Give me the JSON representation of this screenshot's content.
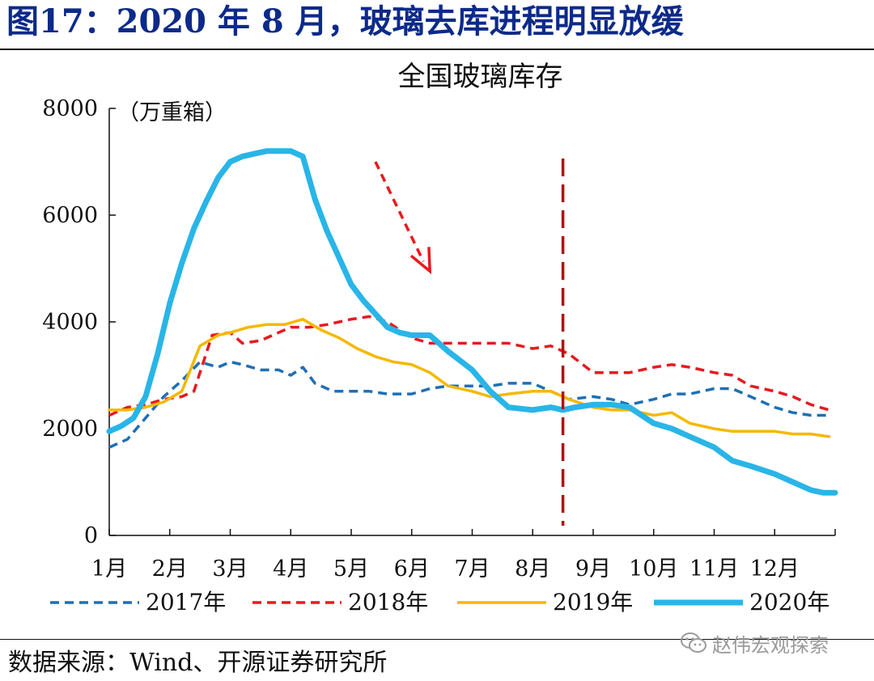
{
  "header": {
    "title": "图17：2020 年 8 月，玻璃去库进程明显放缓"
  },
  "source": {
    "text": "数据来源：Wind、开源证券研究所"
  },
  "watermark": {
    "text": "赵伟宏观探索",
    "icon": "wechat-icon"
  },
  "colors": {
    "s2017": "#1f6fb5",
    "s2018": "#e8191f",
    "s2019": "#f5b800",
    "s2020": "#29b5e8",
    "marker": "#b01010",
    "header": "#0d2a8a"
  },
  "chart_data": {
    "type": "line",
    "title": "全国玻璃库存",
    "ylabel": "（万重箱）",
    "ylim": [
      0,
      8000
    ],
    "yticks": [
      0,
      2000,
      4000,
      6000,
      8000
    ],
    "xlim": [
      1,
      13
    ],
    "categories": [
      "1月",
      "2月",
      "3月",
      "4月",
      "5月",
      "6月",
      "7月",
      "8月",
      "9月",
      "10月",
      "11月",
      "12月"
    ],
    "vline_x": 8.5,
    "arrow": {
      "from": [
        5.4,
        7000
      ],
      "to": [
        6.3,
        4950
      ]
    },
    "legend_position": "bottom",
    "series": [
      {
        "name": "2017年",
        "style": "dashed",
        "color": "#1f6fb5",
        "x": [
          1.0,
          1.3,
          1.6,
          1.9,
          2.2,
          2.5,
          2.8,
          3.0,
          3.2,
          3.5,
          3.8,
          4.0,
          4.2,
          4.4,
          4.7,
          5.0,
          5.3,
          5.6,
          6.0,
          6.3,
          6.6,
          7.0,
          7.3,
          7.6,
          8.0,
          8.3,
          8.6,
          9.0,
          9.3,
          9.6,
          10.0,
          10.3,
          10.6,
          11.0,
          11.3,
          11.6,
          12.0,
          12.3,
          12.6,
          12.9
        ],
        "y": [
          1650,
          1800,
          2200,
          2600,
          2900,
          3250,
          3150,
          3250,
          3200,
          3100,
          3100,
          3000,
          3150,
          2850,
          2700,
          2700,
          2700,
          2650,
          2650,
          2750,
          2800,
          2800,
          2800,
          2850,
          2850,
          2700,
          2550,
          2600,
          2550,
          2450,
          2550,
          2650,
          2650,
          2750,
          2750,
          2600,
          2400,
          2300,
          2250,
          2250
        ]
      },
      {
        "name": "2018年",
        "style": "dashed",
        "color": "#e8191f",
        "x": [
          1.0,
          1.3,
          1.6,
          1.9,
          2.2,
          2.4,
          2.7,
          3.0,
          3.2,
          3.5,
          3.8,
          4.0,
          4.3,
          4.6,
          5.0,
          5.3,
          5.6,
          6.0,
          6.3,
          6.6,
          7.0,
          7.3,
          7.6,
          8.0,
          8.3,
          8.6,
          9.0,
          9.3,
          9.6,
          10.0,
          10.3,
          10.6,
          11.0,
          11.3,
          11.6,
          12.0,
          12.3,
          12.6,
          12.9
        ],
        "y": [
          2250,
          2400,
          2450,
          2550,
          2600,
          2700,
          3750,
          3800,
          3600,
          3650,
          3800,
          3900,
          3900,
          3950,
          4050,
          4100,
          4000,
          3700,
          3600,
          3600,
          3600,
          3600,
          3600,
          3500,
          3550,
          3400,
          3050,
          3050,
          3050,
          3150,
          3200,
          3150,
          3050,
          3000,
          2800,
          2700,
          2600,
          2450,
          2350
        ]
      },
      {
        "name": "2019年",
        "style": "solid",
        "color": "#f5b800",
        "x": [
          1.0,
          1.3,
          1.6,
          1.9,
          2.2,
          2.5,
          2.8,
          3.0,
          3.3,
          3.6,
          3.9,
          4.2,
          4.5,
          4.8,
          5.1,
          5.4,
          5.7,
          6.0,
          6.3,
          6.6,
          7.0,
          7.3,
          7.6,
          8.0,
          8.3,
          8.6,
          9.0,
          9.3,
          9.6,
          10.0,
          10.3,
          10.6,
          11.0,
          11.3,
          11.6,
          12.0,
          12.3,
          12.6,
          12.9
        ],
        "y": [
          2350,
          2350,
          2400,
          2500,
          2700,
          3550,
          3750,
          3800,
          3900,
          3950,
          3950,
          4050,
          3850,
          3700,
          3500,
          3350,
          3250,
          3200,
          3050,
          2800,
          2700,
          2600,
          2650,
          2700,
          2700,
          2550,
          2400,
          2350,
          2350,
          2250,
          2300,
          2100,
          2000,
          1950,
          1950,
          1950,
          1900,
          1900,
          1850
        ]
      },
      {
        "name": "2020年",
        "style": "solid-thick",
        "color": "#29b5e8",
        "x": [
          1.0,
          1.2,
          1.4,
          1.6,
          1.8,
          2.0,
          2.2,
          2.4,
          2.6,
          2.8,
          3.0,
          3.2,
          3.4,
          3.6,
          3.8,
          4.0,
          4.2,
          4.4,
          4.6,
          4.8,
          5.0,
          5.2,
          5.4,
          5.6,
          5.8,
          6.0,
          6.3,
          6.6,
          7.0,
          7.3,
          7.6,
          8.0,
          8.3,
          8.5,
          8.7,
          9.0,
          9.3,
          9.6,
          10.0,
          10.3,
          10.6,
          11.0,
          11.3,
          11.6,
          12.0,
          12.3,
          12.6,
          12.8,
          13.0
        ],
        "y": [
          1950,
          2050,
          2200,
          2600,
          3400,
          4350,
          5100,
          5750,
          6250,
          6700,
          7000,
          7100,
          7150,
          7200,
          7200,
          7200,
          7100,
          6300,
          5700,
          5200,
          4700,
          4400,
          4150,
          3900,
          3800,
          3750,
          3750,
          3450,
          3100,
          2700,
          2400,
          2350,
          2400,
          2350,
          2400,
          2450,
          2450,
          2400,
          2100,
          2000,
          1850,
          1650,
          1400,
          1300,
          1150,
          1000,
          850,
          800,
          800
        ]
      }
    ]
  }
}
